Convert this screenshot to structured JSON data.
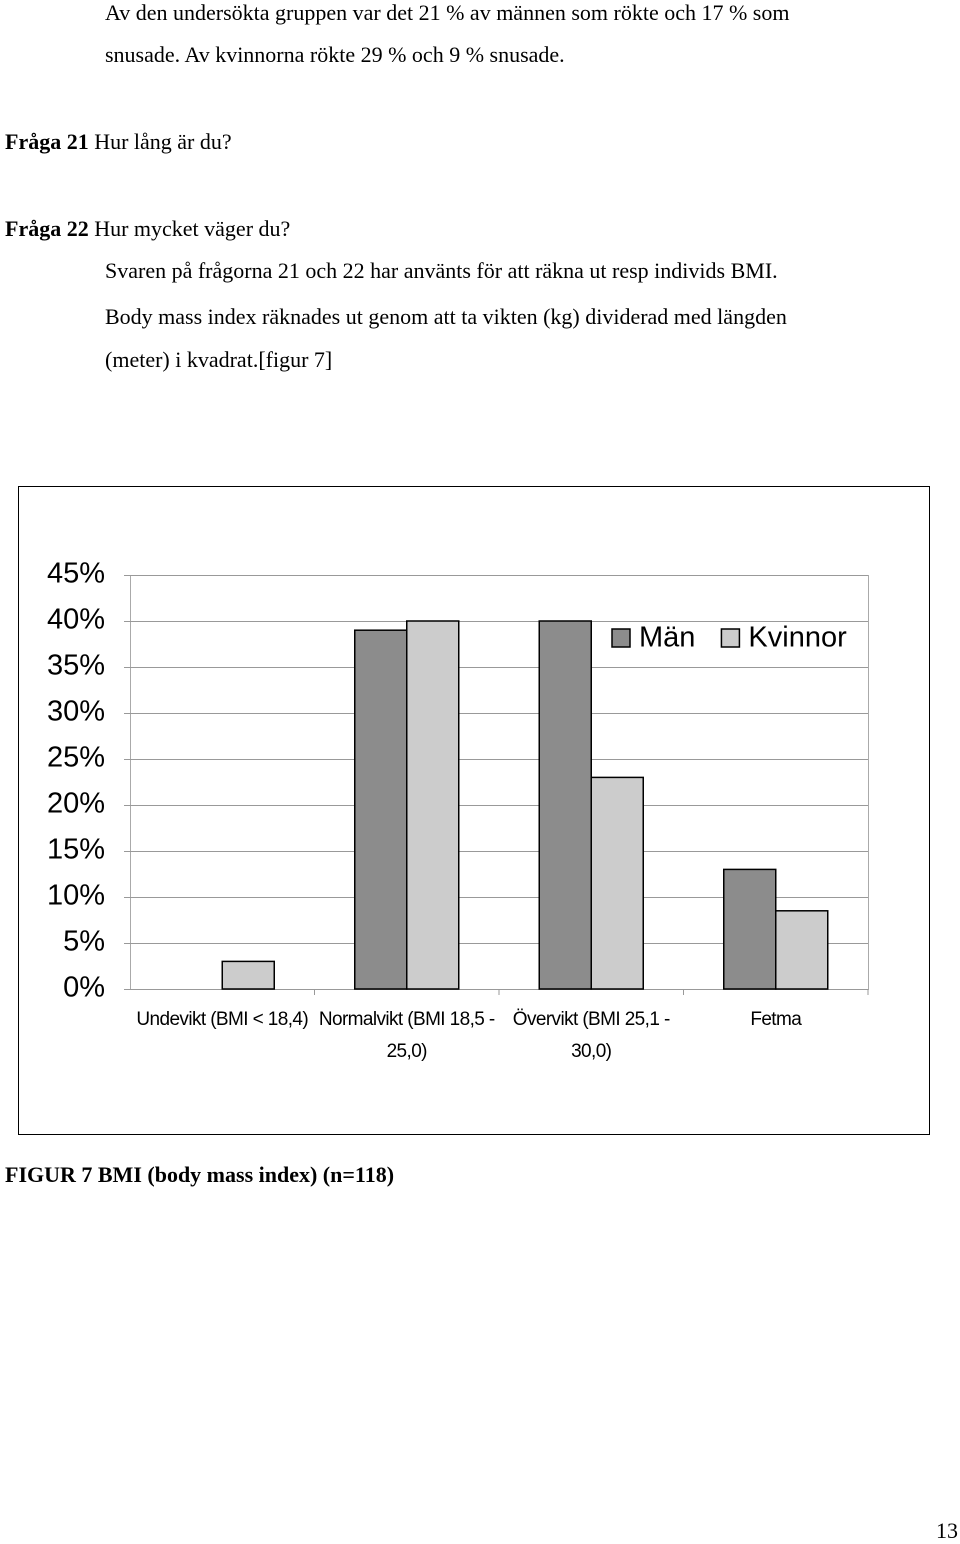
{
  "intro": [
    "Av den undersökta gruppen var det 21 % av männen som rökte och 17 % som",
    "snusade. Av kvinnorna rökte 29 % och 9 % snusade."
  ],
  "questions": [
    {
      "label": "Fråga 21",
      "text": "Hur lång är du?"
    },
    {
      "label": "Fråga 22",
      "text": "Hur mycket väger du?"
    }
  ],
  "body": [
    "Svaren på frågorna 21 och 22 har använts för att räkna ut resp individs BMI.",
    "Body mass index räknades ut genom att ta vikten (kg) dividerad med längden",
    "(meter) i kvadrat.[figur 7]"
  ],
  "chart_data": {
    "type": "bar",
    "categories": [
      "Undevikt (BMI < 18,4)",
      "Normalvikt (BMI 18,5 - 25,0)",
      "Övervikt (BMI 25,1 - 30,0)",
      "Fetma"
    ],
    "series": [
      {
        "name": "Män",
        "color": "#8c8c8c",
        "values": [
          0,
          39,
          40,
          13
        ]
      },
      {
        "name": "Kvinnor",
        "color": "#cccccc",
        "values": [
          3,
          40,
          23,
          8.5
        ]
      }
    ],
    "ylim": [
      0,
      45
    ],
    "yticks": [
      {
        "value": 0,
        "label": "0%"
      },
      {
        "value": 5,
        "label": "5%"
      },
      {
        "value": 10,
        "label": "10%"
      },
      {
        "value": 15,
        "label": "15%"
      },
      {
        "value": 20,
        "label": "20%"
      },
      {
        "value": 25,
        "label": "25%"
      },
      {
        "value": 30,
        "label": "30%"
      },
      {
        "value": 35,
        "label": "35%"
      },
      {
        "value": 40,
        "label": "40%"
      },
      {
        "value": 45,
        "label": "45%"
      }
    ],
    "grid": true,
    "legend": "top-right"
  },
  "caption": "FIGUR 7 BMI (body mass index)  (n=118)",
  "page_number": "13"
}
